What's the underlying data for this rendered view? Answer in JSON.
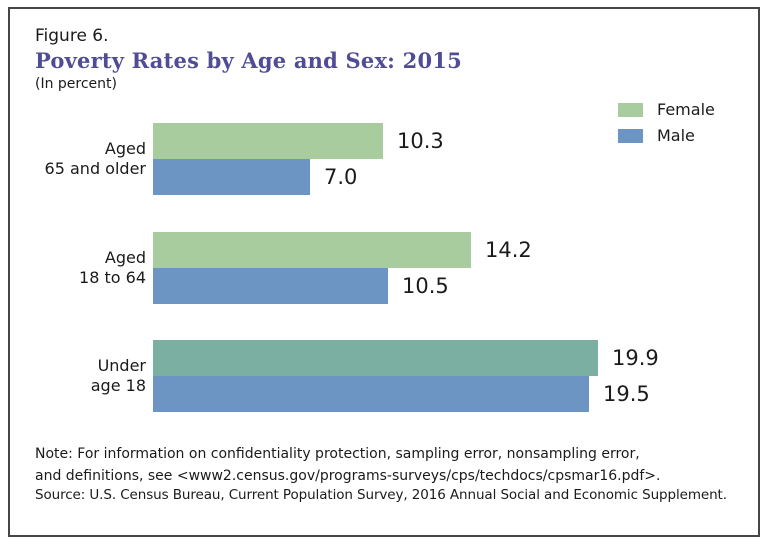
{
  "figure": {
    "number": "Figure 6.",
    "title": "Poverty Rates by Age and Sex: 2015",
    "subtitle": "(In percent)"
  },
  "legend": [
    {
      "label": "Female",
      "color": "#A9CC9E"
    },
    {
      "label": "Male",
      "color": "#6C95C3"
    }
  ],
  "chart_data": {
    "type": "bar",
    "orientation": "horizontal",
    "title": "Poverty Rates by Age and Sex: 2015",
    "unit": "percent",
    "xlim": [
      0,
      20
    ],
    "axes_visible": false,
    "grid": false,
    "value_labels": true,
    "legend_position": "top-right",
    "categories": [
      "Aged 65 and older",
      "Aged 18 to 64",
      "Under age 18"
    ],
    "series": [
      {
        "name": "Female",
        "values": [
          10.3,
          14.2,
          19.9
        ]
      },
      {
        "name": "Male",
        "values": [
          7.0,
          10.5,
          19.5
        ]
      }
    ],
    "groups": [
      {
        "label_lines": [
          "Aged",
          "65 and older"
        ],
        "bars": [
          {
            "series": "Female",
            "value": 10.3,
            "display": "10.3",
            "color": "#A9CC9E"
          },
          {
            "series": "Male",
            "value": 7.0,
            "display": "7.0",
            "color": "#6C95C3"
          }
        ]
      },
      {
        "label_lines": [
          "Aged",
          "18 to 64"
        ],
        "bars": [
          {
            "series": "Female",
            "value": 14.2,
            "display": "14.2",
            "color": "#A9CC9E"
          },
          {
            "series": "Male",
            "value": 10.5,
            "display": "10.5",
            "color": "#6C95C3"
          }
        ]
      },
      {
        "label_lines": [
          "Under",
          "age 18"
        ],
        "bars": [
          {
            "series": "Female",
            "value": 19.9,
            "display": "19.9",
            "color": "#7AAFA2"
          },
          {
            "series": "Male",
            "value": 19.5,
            "display": "19.5",
            "color": "#6C95C3"
          }
        ]
      }
    ]
  },
  "notes": {
    "note_lines": [
      "Note: For information on confidentiality protection, sampling error, nonsampling error,",
      "and definitions, see <www2.census.gov/programs-surveys/cps/techdocs/cpsmar16.pdf>."
    ],
    "source": "Source: U.S. Census Bureau, Current Population Survey, 2016 Annual Social and Economic Supplement."
  },
  "colors": {
    "title": "#504D94",
    "female_green": "#A9CC9E",
    "female_teal": "#7AAFA2",
    "male_blue": "#6C95C3",
    "frame_border": "#454545",
    "text": "#1b1b1b"
  }
}
